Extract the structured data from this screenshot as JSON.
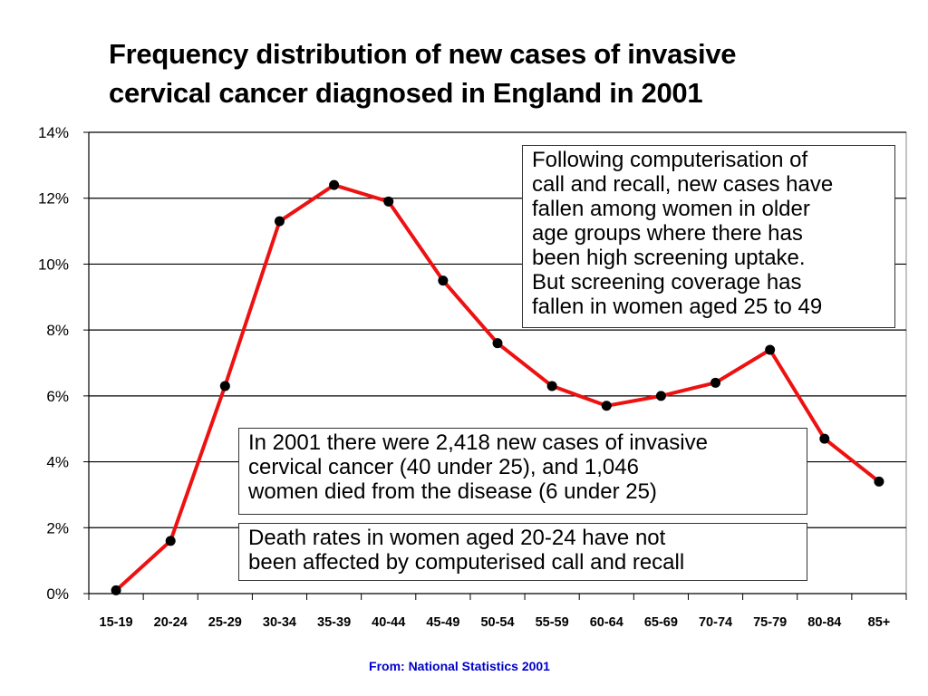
{
  "title_lines": [
    "Frequency distribution of new cases of invasive",
    "cervical cancer diagnosed in England in 2001"
  ],
  "source": "From: National Statistics 2001",
  "colors": {
    "line": "#ee1111",
    "marker": "#000000",
    "grid": "#000000",
    "source_text": "#0000cc"
  },
  "annotations": {
    "note1": [
      "Following computerisation of",
      "call and recall, new cases have",
      "fallen among women in older",
      "age groups where there has",
      "been high screening uptake.",
      "But screening coverage has",
      "fallen in women aged 25 to 49"
    ],
    "note2": [
      "In 2001 there were 2,418 new cases of invasive",
      "cervical cancer (40 under 25), and 1,046",
      "women died from the disease (6 under 25)"
    ],
    "note3": [
      "Death rates in women aged 20-24 have not",
      "been affected by computerised call and recall"
    ]
  },
  "chart_data": {
    "type": "line",
    "categories": [
      "15-19",
      "20-24",
      "25-29",
      "30-34",
      "35-39",
      "40-44",
      "45-49",
      "50-54",
      "55-59",
      "60-64",
      "65-69",
      "70-74",
      "75-79",
      "80-84",
      "85+"
    ],
    "values": [
      0.1,
      1.6,
      6.3,
      11.3,
      12.4,
      11.9,
      9.5,
      7.6,
      6.3,
      5.7,
      6.0,
      6.4,
      7.4,
      4.7,
      3.4
    ],
    "ylim": [
      0,
      14
    ],
    "yticks": [
      0,
      2,
      4,
      6,
      8,
      10,
      12,
      14
    ],
    "ytick_labels": [
      "0%",
      "2%",
      "4%",
      "6%",
      "8%",
      "10%",
      "12%",
      "14%"
    ],
    "grid": "horizontal",
    "legend": "none",
    "xlabel": "",
    "ylabel": ""
  }
}
